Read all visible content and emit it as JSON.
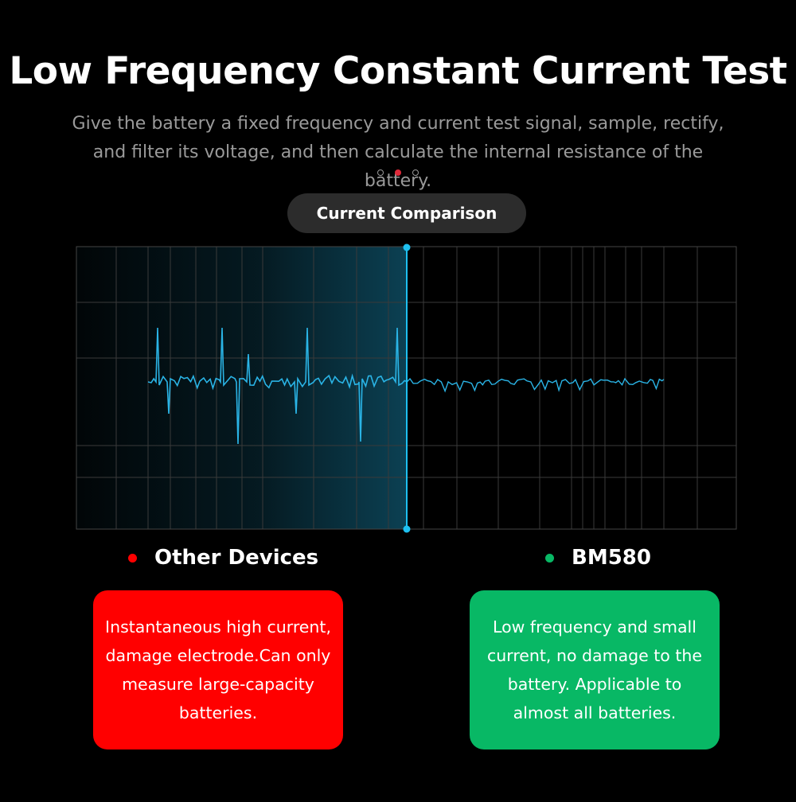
{
  "header": {
    "title": "Low Frequency Constant Current Test",
    "subtitle": "Give the battery a fixed frequency and current test signal, sample, rectify, and filter its voltage, and then calculate the internal resistance of the battery.",
    "pagination": {
      "total": 3,
      "active": 2
    }
  },
  "comparison_label": "Current Comparison",
  "colors": {
    "accent": "#1ec0f0",
    "other_devices": "#ff0000",
    "bm580": "#08b865",
    "active_dot": "#e02a3a"
  },
  "legend": {
    "other": {
      "label": "Other Devices",
      "dot_color": "#ff0000"
    },
    "bm580": {
      "label": "BM580",
      "dot_color": "#08b865"
    }
  },
  "cards": {
    "other": "Instantaneous high current, damage electrode.Can only measure large-capacity batteries.",
    "bm580": "Low frequency and small current, no damage to the battery. Applicable to almost all batteries."
  }
}
